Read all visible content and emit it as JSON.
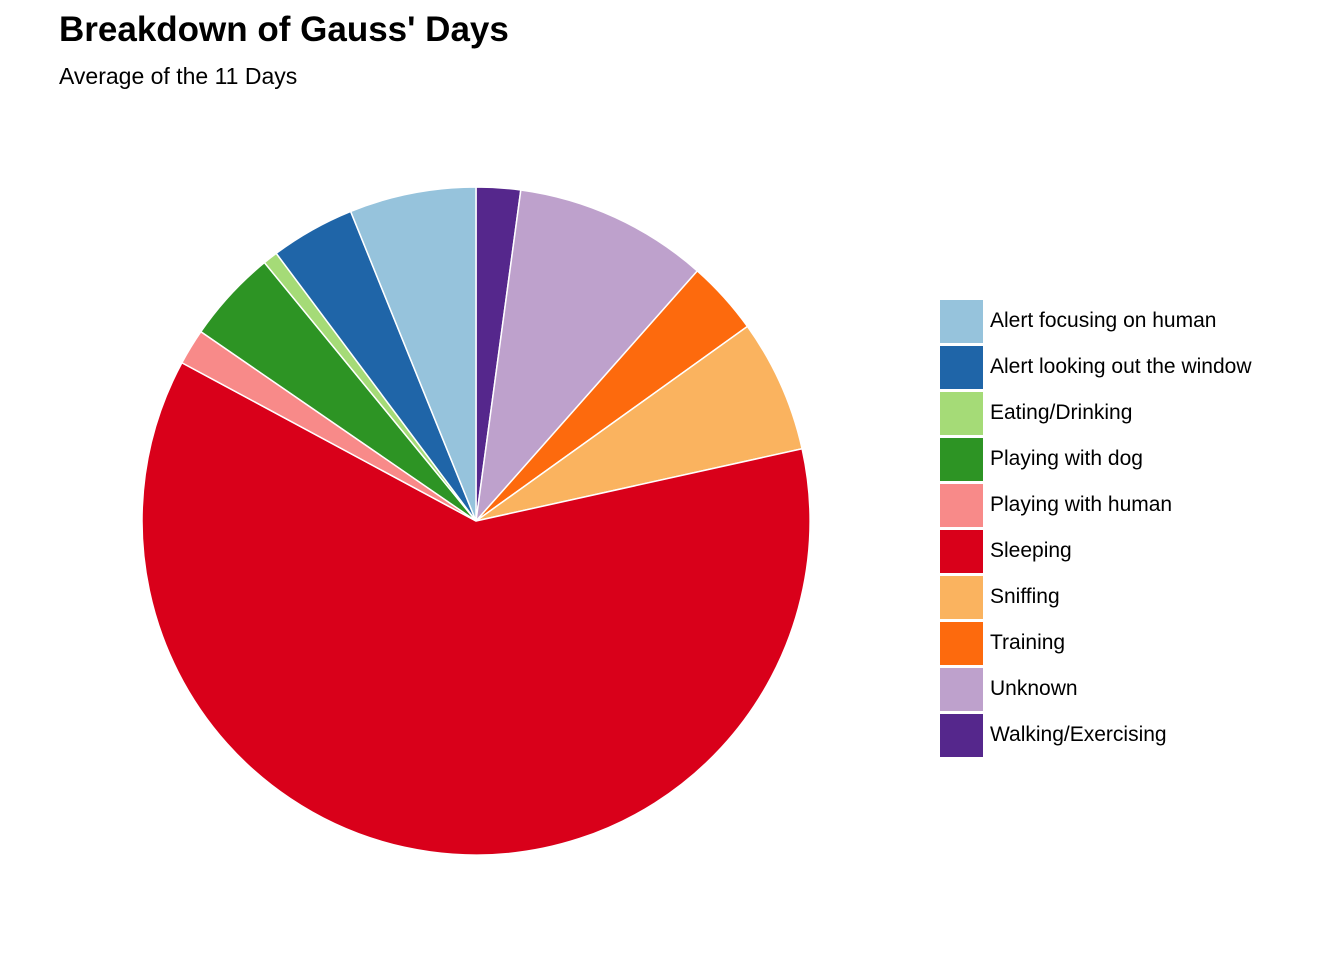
{
  "title": "Breakdown of Gauss' Days",
  "subtitle": "Average of the 11 Days",
  "chart_data": {
    "type": "pie",
    "title": "Breakdown of Gauss' Days",
    "subtitle": "Average of the 11 Days",
    "legend_position": "right",
    "slice_order": "clockwise from top, starting at the last category",
    "slices": [
      {
        "label": "Alert focusing on human",
        "value": 6.0,
        "color": "#96c3dc"
      },
      {
        "label": "Alert looking out the window",
        "value": 4.0,
        "color": "#1f65a8"
      },
      {
        "label": "Eating/Drinking",
        "value": 0.7,
        "color": "#a5db77"
      },
      {
        "label": "Playing with dog",
        "value": 4.4,
        "color": "#2d9424"
      },
      {
        "label": "Playing with human",
        "value": 1.7,
        "color": "#f88a89"
      },
      {
        "label": "Sleeping",
        "value": 60.1,
        "color": "#d9001a"
      },
      {
        "label": "Sniffing",
        "value": 6.3,
        "color": "#fab35f"
      },
      {
        "label": "Training",
        "value": 3.5,
        "color": "#fd6a0d"
      },
      {
        "label": "Unknown",
        "value": 9.2,
        "color": "#bea1cc"
      },
      {
        "label": "Walking/Exercising",
        "value": 2.1,
        "color": "#55278c"
      }
    ]
  }
}
